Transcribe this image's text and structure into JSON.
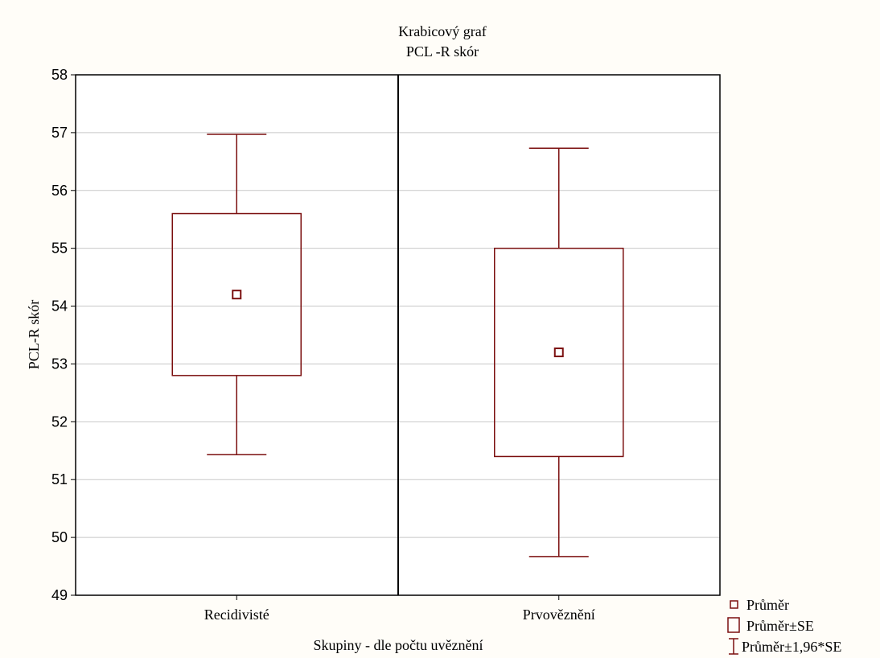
{
  "chart_data": {
    "type": "box",
    "title": "Krabicový graf",
    "subtitle": "PCL -R skór",
    "xlabel": "Skupiny - dle počtu uvěznění",
    "ylabel": "PCL-R skór",
    "ylim": [
      49,
      58
    ],
    "yticks": [
      49,
      50,
      51,
      52,
      53,
      54,
      55,
      56,
      57,
      58
    ],
    "grid": true,
    "legend_position": "bottom-right",
    "categories": [
      "Recidivisté",
      "Prvověznění"
    ],
    "boxes": [
      {
        "category": "Recidivisté",
        "mean": 54.2,
        "box_low": 52.8,
        "box_high": 55.6,
        "whisker_low": 51.43,
        "whisker_high": 56.97
      },
      {
        "category": "Prvověznění",
        "mean": 53.2,
        "box_low": 51.4,
        "box_high": 55.0,
        "whisker_low": 49.67,
        "whisker_high": 56.73
      }
    ],
    "legend": [
      {
        "symbol": "point",
        "label": "Průměr"
      },
      {
        "symbol": "box",
        "label": "Průměr±SE"
      },
      {
        "symbol": "whisker",
        "label": "Průměr±1,96*SE"
      }
    ],
    "colors": {
      "series": "#7b0f0f",
      "grid": "#c8c8c8",
      "background": "#fffdf8",
      "plot": "#ffffff"
    }
  }
}
